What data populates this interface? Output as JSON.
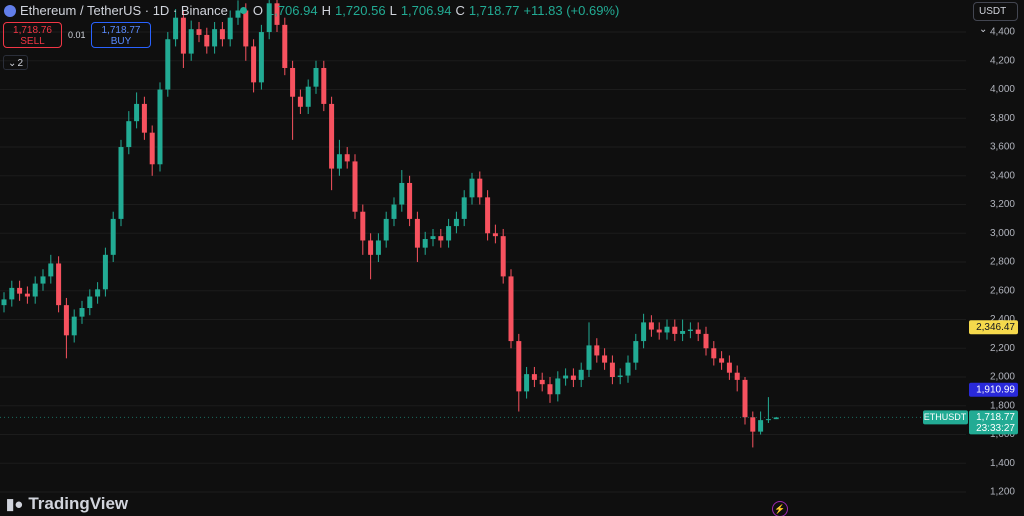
{
  "header": {
    "symbol": "Ethereum / TetherUS · 1D · Binance",
    "o_label": "O",
    "o": "1,706.94",
    "h_label": "H",
    "h": "1,720.56",
    "l_label": "L",
    "l": "1,706.94",
    "c_label": "C",
    "c": "1,718.77",
    "change": "+11.83 (+0.69%)",
    "sell_price": "1,718.76",
    "sell": "SELL",
    "qty": "0.01",
    "buy_price": "1,718.77",
    "buy": "BUY",
    "layers": "2",
    "currency": "USDT",
    "brand": "TradingView"
  },
  "chart_data": {
    "type": "candlestick",
    "up_color": "#22ab94",
    "down_color": "#f7525f",
    "grid": true,
    "ylim": [
      1033,
      4623
    ],
    "yticks": [
      {
        "value": 1200,
        "label": "1,200"
      },
      {
        "value": 1400,
        "label": "1,400"
      },
      {
        "value": 1600,
        "label": "1,600"
      },
      {
        "value": 1800,
        "label": "1,800"
      },
      {
        "value": 2000,
        "label": "2,000"
      },
      {
        "value": 2200,
        "label": "2,200"
      },
      {
        "value": 2400,
        "label": "2,400"
      },
      {
        "value": 2600,
        "label": "2,600"
      },
      {
        "value": 2800,
        "label": "2,800"
      },
      {
        "value": 3000,
        "label": "3,000"
      },
      {
        "value": 3200,
        "label": "3,200"
      },
      {
        "value": 3400,
        "label": "3,400"
      },
      {
        "value": 3600,
        "label": "3,600"
      },
      {
        "value": 3800,
        "label": "3,800"
      },
      {
        "value": 4000,
        "label": "4,000"
      },
      {
        "value": 4200,
        "label": "4,200"
      },
      {
        "value": 4400,
        "label": "4,400"
      }
    ],
    "open": [
      2500,
      2540,
      2620,
      2580,
      2560,
      2650,
      2700,
      2790,
      2500,
      2290,
      2420,
      2480,
      2560,
      2610,
      2850,
      3100,
      3600,
      3780,
      3900,
      3700,
      3480,
      4000,
      4350,
      4500,
      4250,
      4420,
      4380,
      4300,
      4420,
      4350,
      4500,
      4550,
      4300,
      4050,
      4400,
      4600,
      4450,
      4150,
      3950,
      3880,
      4020,
      4150,
      3900,
      3450,
      3550,
      3500,
      3150,
      2950,
      2850,
      2950,
      3100,
      3200,
      3350,
      3100,
      2900,
      2960,
      2980,
      2950,
      3050,
      3100,
      3250,
      3380,
      3250,
      3000,
      2980,
      2700,
      2250,
      1900,
      2020,
      1980,
      1950,
      1880,
      1990,
      2010,
      1980,
      2050,
      2220,
      2150,
      2100,
      2000,
      2010,
      2100,
      2250,
      2380,
      2330,
      2310,
      2350,
      2300,
      2320,
      2330,
      2300,
      2200,
      2130,
      2100,
      2030,
      1980,
      1720,
      1620,
      1700,
      1706.94
    ],
    "high": [
      2590,
      2670,
      2670,
      2630,
      2700,
      2750,
      2850,
      2840,
      2550,
      2470,
      2530,
      2610,
      2660,
      2900,
      3150,
      3650,
      3850,
      3980,
      3950,
      3750,
      4050,
      4400,
      4560,
      4550,
      4480,
      4470,
      4430,
      4470,
      4470,
      4550,
      4620,
      4600,
      4350,
      4450,
      4640,
      4640,
      4500,
      4200,
      4000,
      4070,
      4200,
      4200,
      3950,
      3650,
      3600,
      3550,
      3200,
      3000,
      3000,
      3150,
      3250,
      3440,
      3400,
      3150,
      3010,
      3030,
      3030,
      3100,
      3150,
      3300,
      3420,
      3430,
      3300,
      3060,
      3030,
      2750,
      2300,
      2070,
      2070,
      2030,
      2000,
      2040,
      2060,
      2060,
      2100,
      2380,
      2270,
      2200,
      2150,
      2060,
      2150,
      2300,
      2440,
      2430,
      2380,
      2400,
      2400,
      2400,
      2380,
      2380,
      2350,
      2250,
      2180,
      2150,
      2080,
      2000,
      1760,
      1760,
      1860,
      1720.56
    ],
    "low": [
      2450,
      2490,
      2530,
      2510,
      2510,
      2600,
      2650,
      2450,
      2130,
      2240,
      2370,
      2430,
      2510,
      2560,
      2800,
      3050,
      3550,
      3730,
      3650,
      3400,
      3430,
      3950,
      4300,
      4150,
      4200,
      4330,
      4250,
      4250,
      4300,
      4300,
      4450,
      4200,
      3980,
      4000,
      4350,
      4400,
      4100,
      3650,
      3830,
      3830,
      3970,
      3850,
      3300,
      3400,
      3450,
      3100,
      2850,
      2680,
      2800,
      2900,
      3050,
      3150,
      3050,
      2800,
      2850,
      2910,
      2900,
      2900,
      3000,
      3050,
      3200,
      3200,
      2950,
      2930,
      2650,
      2200,
      1760,
      1850,
      1930,
      1900,
      1820,
      1830,
      1940,
      1930,
      1930,
      2000,
      2100,
      2050,
      1950,
      1950,
      1960,
      2050,
      2200,
      2280,
      2260,
      2260,
      2250,
      2250,
      2270,
      2250,
      2150,
      2080,
      2050,
      1980,
      1900,
      1670,
      1510,
      1600,
      1680,
      1706.94
    ],
    "close": [
      2540,
      2620,
      2580,
      2560,
      2650,
      2700,
      2790,
      2500,
      2290,
      2420,
      2480,
      2560,
      2610,
      2850,
      3100,
      3600,
      3780,
      3900,
      3700,
      3480,
      4000,
      4350,
      4500,
      4250,
      4420,
      4380,
      4300,
      4420,
      4350,
      4500,
      4550,
      4300,
      4050,
      4400,
      4600,
      4450,
      4150,
      3950,
      3880,
      4020,
      4150,
      3900,
      3450,
      3550,
      3500,
      3150,
      2950,
      2850,
      2950,
      3100,
      3200,
      3350,
      3100,
      2900,
      2960,
      2980,
      2950,
      3050,
      3100,
      3250,
      3380,
      3250,
      3000,
      2980,
      2700,
      2250,
      1900,
      2020,
      1980,
      1950,
      1880,
      1990,
      2010,
      1980,
      2050,
      2220,
      2150,
      2100,
      2000,
      2010,
      2100,
      2250,
      2380,
      2330,
      2310,
      2350,
      2300,
      2320,
      2330,
      2300,
      2200,
      2130,
      2100,
      2030,
      1980,
      1720,
      1620,
      1700,
      1706.94,
      1718.77
    ],
    "markers": [
      {
        "value": 2346.47,
        "label": "2,346.47",
        "color": "#f5d94c",
        "text_color": "#131722"
      },
      {
        "value": 1910.99,
        "label": "1,910.99",
        "color": "#2929d9",
        "text_color": "#ffffff"
      }
    ],
    "last_price": {
      "value": 1718.77,
      "label": "1,718.77",
      "symbol": "ETHUSDT",
      "countdown": "23:33:27",
      "color": "#22ab94"
    }
  }
}
